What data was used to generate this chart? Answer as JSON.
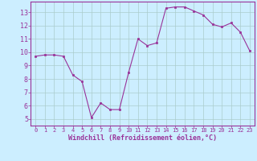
{
  "x": [
    0,
    1,
    2,
    3,
    4,
    5,
    6,
    7,
    8,
    9,
    10,
    11,
    12,
    13,
    14,
    15,
    16,
    17,
    18,
    19,
    20,
    21,
    22,
    23
  ],
  "y": [
    9.7,
    9.8,
    9.8,
    9.7,
    8.3,
    7.8,
    5.1,
    6.2,
    5.7,
    5.7,
    8.5,
    11.0,
    10.5,
    10.7,
    13.3,
    13.4,
    13.4,
    13.1,
    12.8,
    12.1,
    11.9,
    12.2,
    11.5,
    10.1
  ],
  "line_color": "#993399",
  "marker_color": "#993399",
  "bg_color": "#cceeff",
  "grid_color": "#aacccc",
  "xlabel": "Windchill (Refroidissement éolien,°C)",
  "xlim": [
    -0.5,
    23.5
  ],
  "ylim": [
    4.5,
    13.8
  ],
  "yticks": [
    5,
    6,
    7,
    8,
    9,
    10,
    11,
    12,
    13
  ],
  "xticks": [
    0,
    1,
    2,
    3,
    4,
    5,
    6,
    7,
    8,
    9,
    10,
    11,
    12,
    13,
    14,
    15,
    16,
    17,
    18,
    19,
    20,
    21,
    22,
    23
  ]
}
